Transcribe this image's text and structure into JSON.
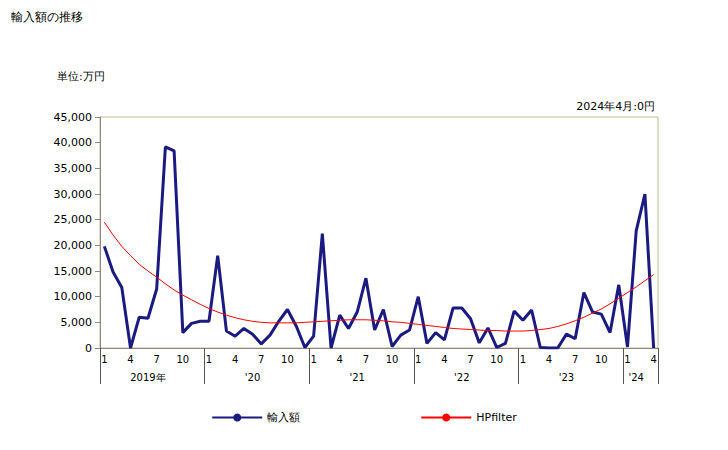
{
  "chart_data": {
    "type": "line",
    "title": "輸入額の推移",
    "subtitle": "単位:万円",
    "annotations": [
      "2024年4月:0円"
    ],
    "categories": [
      "1",
      null,
      null,
      "4",
      null,
      null,
      "7",
      null,
      null,
      "10",
      null,
      null,
      "1",
      null,
      null,
      "4",
      null,
      null,
      "7",
      null,
      null,
      "10",
      null,
      null,
      "1",
      null,
      null,
      "4",
      null,
      null,
      "7",
      null,
      null,
      "10",
      null,
      null,
      "1",
      null,
      null,
      "4",
      null,
      null,
      "7",
      null,
      null,
      "10",
      null,
      null,
      "1",
      null,
      null,
      "4",
      null,
      null,
      "7",
      null,
      null,
      "10",
      null,
      null,
      "1",
      null,
      null,
      "4"
    ],
    "year_labels": [
      null,
      null,
      null,
      null,
      null,
      "2019年",
      null,
      null,
      null,
      null,
      null,
      null,
      null,
      null,
      null,
      null,
      null,
      "'20",
      null,
      null,
      null,
      null,
      null,
      null,
      null,
      null,
      null,
      null,
      null,
      "'21",
      null,
      null,
      null,
      null,
      null,
      null,
      null,
      null,
      null,
      null,
      null,
      "'22",
      null,
      null,
      null,
      null,
      null,
      null,
      null,
      null,
      null,
      null,
      null,
      "'23",
      null,
      null,
      null,
      null,
      null,
      null,
      null,
      "'24",
      null,
      null
    ],
    "series": [
      {
        "name": "輸入額",
        "color": "#1a1a80",
        "line_style": "solid",
        "values": [
          19800,
          14800,
          11800,
          0,
          6000,
          5800,
          11500,
          39200,
          38400,
          3000,
          4800,
          5200,
          5200,
          18000,
          3300,
          2300,
          3800,
          2700,
          800,
          2500,
          5200,
          7500,
          4300,
          100,
          2300,
          22300,
          0,
          6400,
          3800,
          7000,
          13600,
          3500,
          7500,
          300,
          2500,
          3500,
          10000,
          900,
          3000,
          1600,
          7800,
          7800,
          5700,
          1000,
          3900,
          100,
          900,
          7200,
          5400,
          7400,
          100,
          0,
          0,
          2700,
          1800,
          10800,
          7000,
          6600,
          3000,
          12300,
          200,
          22800,
          30000,
          0
        ]
      },
      {
        "name": "HPfilter",
        "color": "#ff0000",
        "line_style": "solid",
        "values": [
          24500,
          22000,
          19800,
          18000,
          16300,
          15000,
          13800,
          12500,
          11300,
          10300,
          9400,
          8500,
          7700,
          7000,
          6400,
          5900,
          5500,
          5200,
          5000,
          4900,
          4900,
          4900,
          4900,
          5000,
          5100,
          5200,
          5300,
          5400,
          5500,
          5500,
          5500,
          5400,
          5300,
          5100,
          5000,
          4800,
          4600,
          4400,
          4200,
          4000,
          3800,
          3700,
          3600,
          3500,
          3400,
          3400,
          3300,
          3300,
          3300,
          3400,
          3600,
          3800,
          4200,
          4700,
          5300,
          6000,
          6800,
          7600,
          8600,
          9700,
          10800,
          11900,
          13100,
          14300
        ]
      }
    ],
    "ylim": [
      0,
      45000
    ],
    "yticks": [
      0,
      {
        "value": 5000,
        "label": "5,000"
      },
      {
        "value": 10000,
        "label": "10,000"
      },
      {
        "value": 15000,
        "label": "15,000"
      },
      {
        "value": 20000,
        "label": "20,000"
      },
      {
        "value": 25000,
        "label": "25,000"
      },
      {
        "value": 30000,
        "label": "30,000"
      },
      {
        "value": 35000,
        "label": "35,000"
      },
      {
        "value": 40000,
        "label": "40,000"
      },
      {
        "value": 45000,
        "label": "45,000"
      }
    ],
    "grid": false,
    "legend": "bottom"
  }
}
